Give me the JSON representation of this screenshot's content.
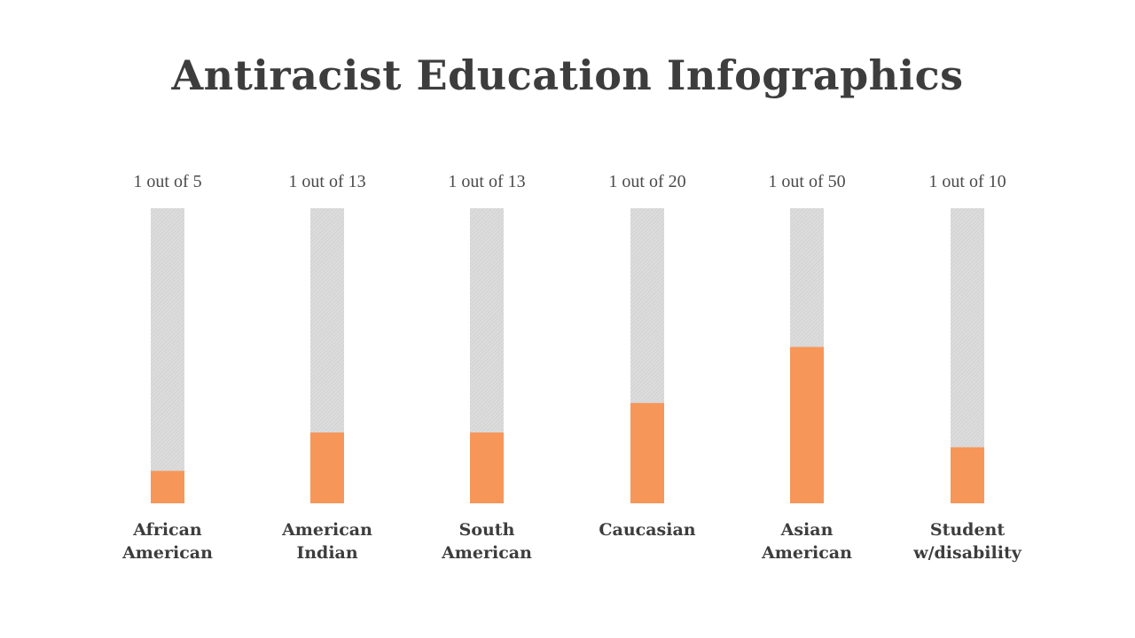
{
  "chart_data": {
    "type": "bar",
    "title": "Antiracist Education Infographics",
    "categories": [
      [
        "African",
        "American"
      ],
      [
        "American",
        "Indian"
      ],
      [
        "South",
        "American"
      ],
      [
        "Caucasian"
      ],
      [
        "Asian",
        "American"
      ],
      [
        "Student",
        "w/disability"
      ]
    ],
    "value_labels": [
      "1 out of 5",
      "1 out of 13",
      "1 out of 13",
      "1 out of 20",
      "1 out of 50",
      "1 out of 10"
    ],
    "values": [
      0.11,
      0.24,
      0.24,
      0.34,
      0.53,
      0.19
    ],
    "ylim": [
      0,
      1
    ],
    "xlabel": "",
    "ylabel": "",
    "colors": {
      "fill": "#f79659",
      "track": "#dcdcdc",
      "track_stripe": "#c9c9c9"
    }
  }
}
